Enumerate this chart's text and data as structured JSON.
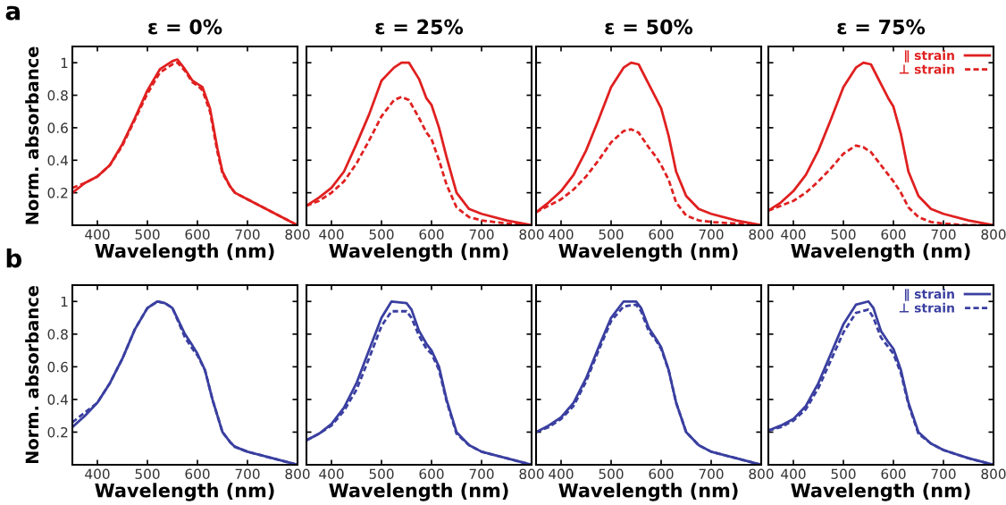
{
  "chart_data": [
    {
      "type": "line",
      "title": "ε = 0%",
      "xlabel": "Wavelength (nm)",
      "ylabel": "Norm. absorbance",
      "annotations": [
        "a"
      ],
      "xlim": [
        350,
        800
      ],
      "xticks": [
        400,
        500,
        600,
        700,
        800
      ],
      "ylim": [
        0,
        1.1
      ],
      "yticks": [
        0.2,
        0.4,
        0.6,
        0.8,
        1
      ],
      "series": [
        {
          "color": "#e02020",
          "line_style": "solid",
          "x": [
            350,
            375,
            400,
            425,
            450,
            475,
            500,
            525,
            550,
            560,
            575,
            590,
            600,
            610,
            625,
            640,
            650,
            665,
            675,
            700,
            725,
            750,
            775,
            800
          ],
          "values": [
            0.2,
            0.26,
            0.3,
            0.37,
            0.5,
            0.66,
            0.83,
            0.96,
            1.01,
            1.02,
            0.96,
            0.89,
            0.87,
            0.85,
            0.72,
            0.47,
            0.33,
            0.24,
            0.2,
            0.16,
            0.12,
            0.08,
            0.04,
            0.0
          ]
        },
        {
          "color": "#e02020",
          "line_style": "dashed",
          "x": [
            350,
            375,
            400,
            425,
            450,
            475,
            500,
            525,
            550,
            560,
            575,
            590,
            600,
            610,
            625,
            640,
            650,
            665,
            675,
            700,
            725,
            750,
            775,
            800
          ],
          "values": [
            0.23,
            0.26,
            0.3,
            0.37,
            0.49,
            0.65,
            0.81,
            0.94,
            0.99,
            1.0,
            0.95,
            0.88,
            0.86,
            0.83,
            0.7,
            0.45,
            0.32,
            0.24,
            0.2,
            0.16,
            0.12,
            0.08,
            0.04,
            0.0
          ]
        }
      ]
    },
    {
      "type": "line",
      "title": "ε = 25%",
      "xlabel": "Wavelength (nm)",
      "tick_labels": "x",
      "xlim": [
        350,
        800
      ],
      "xticks": [
        400,
        500,
        600,
        700,
        800
      ],
      "ylim": [
        0,
        1.1
      ],
      "yticks": [
        0.2,
        0.4,
        0.6,
        0.8,
        1
      ],
      "series": [
        {
          "color": "#e02020",
          "line_style": "solid",
          "x": [
            350,
            375,
            400,
            425,
            450,
            475,
            500,
            525,
            540,
            555,
            575,
            590,
            600,
            615,
            630,
            650,
            675,
            700,
            750,
            800
          ],
          "values": [
            0.12,
            0.17,
            0.23,
            0.33,
            0.5,
            0.68,
            0.89,
            0.97,
            1.0,
            1.0,
            0.9,
            0.78,
            0.74,
            0.6,
            0.42,
            0.2,
            0.1,
            0.07,
            0.03,
            0.0
          ]
        },
        {
          "color": "#e02020",
          "line_style": "dashed",
          "x": [
            350,
            375,
            400,
            425,
            450,
            475,
            500,
            525,
            540,
            555,
            575,
            590,
            600,
            615,
            630,
            650,
            675,
            700,
            750,
            800
          ],
          "values": [
            0.12,
            0.15,
            0.2,
            0.27,
            0.38,
            0.52,
            0.67,
            0.77,
            0.79,
            0.77,
            0.66,
            0.57,
            0.53,
            0.4,
            0.25,
            0.11,
            0.05,
            0.03,
            0.01,
            0.0
          ]
        }
      ]
    },
    {
      "type": "line",
      "title": "ε = 50%",
      "xlabel": "Wavelength (nm)",
      "tick_labels": "x",
      "xlim": [
        350,
        800
      ],
      "xticks": [
        400,
        500,
        600,
        700,
        800
      ],
      "ylim": [
        0,
        1.1
      ],
      "yticks": [
        0.2,
        0.4,
        0.6,
        0.8,
        1
      ],
      "series": [
        {
          "color": "#e02020",
          "line_style": "solid",
          "x": [
            350,
            375,
            400,
            425,
            450,
            475,
            500,
            525,
            540,
            555,
            575,
            590,
            600,
            615,
            630,
            650,
            675,
            700,
            750,
            800
          ],
          "values": [
            0.08,
            0.14,
            0.21,
            0.31,
            0.46,
            0.65,
            0.85,
            0.97,
            1.0,
            0.99,
            0.87,
            0.78,
            0.72,
            0.55,
            0.33,
            0.18,
            0.1,
            0.07,
            0.03,
            0.0
          ]
        },
        {
          "color": "#e02020",
          "line_style": "dashed",
          "x": [
            350,
            375,
            400,
            425,
            450,
            475,
            500,
            525,
            540,
            555,
            575,
            590,
            600,
            615,
            630,
            650,
            675,
            700,
            750,
            800
          ],
          "values": [
            0.08,
            0.12,
            0.16,
            0.22,
            0.3,
            0.4,
            0.51,
            0.58,
            0.59,
            0.57,
            0.48,
            0.42,
            0.37,
            0.28,
            0.14,
            0.06,
            0.03,
            0.02,
            0.01,
            0.0
          ]
        }
      ]
    },
    {
      "type": "line",
      "title": "ε = 75%",
      "xlabel": "Wavelength (nm)",
      "tick_labels": "x",
      "legend": "top right",
      "xlim": [
        350,
        800
      ],
      "xticks": [
        400,
        500,
        600,
        700,
        800
      ],
      "ylim": [
        0,
        1.1
      ],
      "yticks": [
        0.2,
        0.4,
        0.6,
        0.8,
        1
      ],
      "series": [
        {
          "name": "∥ strain",
          "color": "#e02020",
          "line_style": "solid",
          "x": [
            350,
            375,
            400,
            425,
            450,
            475,
            500,
            525,
            540,
            555,
            575,
            590,
            600,
            615,
            630,
            650,
            675,
            700,
            750,
            800
          ],
          "values": [
            0.09,
            0.14,
            0.21,
            0.31,
            0.46,
            0.65,
            0.85,
            0.97,
            1.0,
            0.99,
            0.87,
            0.78,
            0.73,
            0.56,
            0.33,
            0.18,
            0.1,
            0.07,
            0.03,
            0.0
          ]
        },
        {
          "name": "⊥ strain",
          "color": "#e02020",
          "line_style": "dashed",
          "x": [
            350,
            375,
            400,
            425,
            450,
            475,
            500,
            525,
            540,
            555,
            575,
            590,
            600,
            615,
            630,
            650,
            675,
            700,
            750,
            800
          ],
          "values": [
            0.09,
            0.12,
            0.15,
            0.2,
            0.27,
            0.35,
            0.44,
            0.49,
            0.48,
            0.45,
            0.37,
            0.31,
            0.27,
            0.2,
            0.11,
            0.05,
            0.02,
            0.01,
            0.0,
            0.0
          ]
        }
      ]
    },
    {
      "type": "line",
      "xlabel": "Wavelength (nm)",
      "ylabel": "Norm. absorbance",
      "annotations": [
        "b"
      ],
      "xlim": [
        350,
        800
      ],
      "xticks": [
        400,
        500,
        600,
        700,
        800
      ],
      "ylim": [
        0,
        1.1
      ],
      "yticks": [
        0.2,
        0.4,
        0.6,
        0.8,
        1
      ],
      "series": [
        {
          "color": "#3a3fa0",
          "line_style": "solid",
          "x": [
            350,
            375,
            400,
            425,
            450,
            475,
            500,
            520,
            535,
            550,
            575,
            590,
            600,
            615,
            630,
            650,
            665,
            675,
            700,
            750,
            800
          ],
          "values": [
            0.23,
            0.3,
            0.38,
            0.5,
            0.65,
            0.83,
            0.96,
            1.0,
            0.99,
            0.96,
            0.8,
            0.73,
            0.68,
            0.58,
            0.4,
            0.2,
            0.14,
            0.11,
            0.08,
            0.04,
            0.0
          ]
        },
        {
          "color": "#3a3fa0",
          "line_style": "dashed",
          "x": [
            350,
            375,
            400,
            425,
            450,
            475,
            500,
            520,
            535,
            550,
            575,
            590,
            600,
            615,
            630,
            650,
            665,
            675,
            700,
            750,
            800
          ],
          "values": [
            0.26,
            0.32,
            0.38,
            0.5,
            0.65,
            0.83,
            0.96,
            1.0,
            0.99,
            0.96,
            0.78,
            0.71,
            0.67,
            0.58,
            0.4,
            0.2,
            0.14,
            0.11,
            0.08,
            0.04,
            0.0
          ]
        }
      ]
    },
    {
      "type": "line",
      "xlabel": "Wavelength (nm)",
      "tick_labels": "x",
      "xlim": [
        350,
        800
      ],
      "xticks": [
        400,
        500,
        600,
        700,
        800
      ],
      "ylim": [
        0,
        1.1
      ],
      "yticks": [
        0.2,
        0.4,
        0.6,
        0.8,
        1
      ],
      "series": [
        {
          "color": "#3a3fa0",
          "line_style": "solid",
          "x": [
            350,
            375,
            400,
            425,
            450,
            475,
            500,
            520,
            550,
            560,
            575,
            590,
            600,
            615,
            630,
            650,
            675,
            700,
            750,
            800
          ],
          "values": [
            0.15,
            0.19,
            0.25,
            0.35,
            0.5,
            0.7,
            0.9,
            1.0,
            0.99,
            0.95,
            0.82,
            0.74,
            0.7,
            0.6,
            0.4,
            0.2,
            0.12,
            0.08,
            0.04,
            0.0
          ]
        },
        {
          "color": "#3a3fa0",
          "line_style": "dashed",
          "x": [
            350,
            375,
            400,
            425,
            450,
            475,
            500,
            520,
            550,
            560,
            575,
            590,
            600,
            615,
            630,
            650,
            675,
            700,
            750,
            800
          ],
          "values": [
            0.15,
            0.19,
            0.24,
            0.33,
            0.46,
            0.65,
            0.85,
            0.94,
            0.94,
            0.9,
            0.79,
            0.71,
            0.68,
            0.58,
            0.39,
            0.19,
            0.12,
            0.08,
            0.04,
            0.0
          ]
        }
      ]
    },
    {
      "type": "line",
      "xlabel": "Wavelength (nm)",
      "tick_labels": "x",
      "xlim": [
        350,
        800
      ],
      "xticks": [
        400,
        500,
        600,
        700,
        800
      ],
      "ylim": [
        0,
        1.1
      ],
      "yticks": [
        0.2,
        0.4,
        0.6,
        0.8,
        1
      ],
      "series": [
        {
          "color": "#3a3fa0",
          "line_style": "solid",
          "x": [
            350,
            375,
            400,
            425,
            450,
            475,
            500,
            525,
            550,
            560,
            575,
            590,
            600,
            615,
            630,
            650,
            675,
            700,
            750,
            800
          ],
          "values": [
            0.2,
            0.24,
            0.29,
            0.38,
            0.53,
            0.72,
            0.9,
            1.0,
            1.0,
            0.96,
            0.84,
            0.77,
            0.72,
            0.58,
            0.38,
            0.2,
            0.12,
            0.08,
            0.04,
            0.0
          ]
        },
        {
          "color": "#3a3fa0",
          "line_style": "dashed",
          "x": [
            350,
            375,
            400,
            425,
            450,
            475,
            500,
            525,
            550,
            560,
            575,
            590,
            600,
            615,
            630,
            650,
            675,
            700,
            750,
            800
          ],
          "values": [
            0.2,
            0.23,
            0.28,
            0.36,
            0.51,
            0.7,
            0.88,
            0.97,
            0.98,
            0.94,
            0.82,
            0.76,
            0.71,
            0.58,
            0.38,
            0.2,
            0.12,
            0.08,
            0.04,
            0.0
          ]
        }
      ]
    },
    {
      "type": "line",
      "xlabel": "Wavelength (nm)",
      "tick_labels": "x",
      "legend": "top right",
      "xlim": [
        350,
        800
      ],
      "xticks": [
        400,
        500,
        600,
        700,
        800
      ],
      "ylim": [
        0,
        1.1
      ],
      "yticks": [
        0.2,
        0.4,
        0.6,
        0.8,
        1
      ],
      "series": [
        {
          "name": "∥ strain",
          "color": "#3a3fa0",
          "line_style": "solid",
          "x": [
            350,
            375,
            400,
            425,
            450,
            475,
            500,
            525,
            550,
            560,
            575,
            590,
            600,
            615,
            630,
            650,
            675,
            700,
            750,
            800
          ],
          "values": [
            0.21,
            0.24,
            0.28,
            0.36,
            0.5,
            0.68,
            0.86,
            0.98,
            1.0,
            0.96,
            0.82,
            0.75,
            0.71,
            0.58,
            0.38,
            0.2,
            0.13,
            0.09,
            0.04,
            0.0
          ]
        },
        {
          "name": "⊥ strain",
          "color": "#3a3fa0",
          "line_style": "dashed",
          "x": [
            350,
            375,
            400,
            425,
            450,
            475,
            500,
            525,
            550,
            560,
            575,
            590,
            600,
            615,
            630,
            650,
            675,
            700,
            750,
            800
          ],
          "values": [
            0.21,
            0.23,
            0.27,
            0.34,
            0.47,
            0.64,
            0.81,
            0.93,
            0.95,
            0.9,
            0.78,
            0.72,
            0.68,
            0.56,
            0.37,
            0.19,
            0.13,
            0.09,
            0.04,
            0.0
          ]
        }
      ]
    }
  ]
}
